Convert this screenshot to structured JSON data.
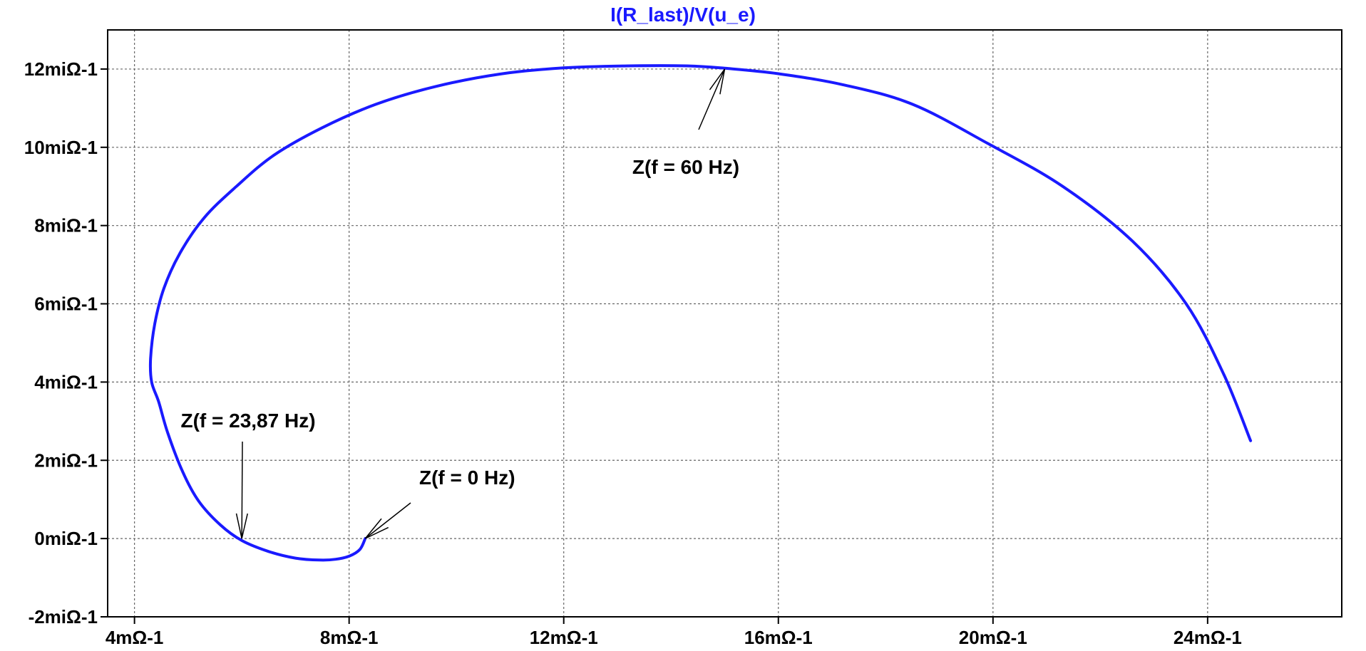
{
  "chart_data": {
    "type": "line",
    "title": "I(R_last)/V(u_e)",
    "xlabel": "",
    "ylabel": "",
    "xlim": [
      3.5,
      26.5
    ],
    "ylim": [
      -2.0,
      13.0
    ],
    "grid": true,
    "x_ticks": [
      4,
      8,
      12,
      16,
      20,
      24
    ],
    "x_tick_labels": [
      "4mΩ-1",
      "8mΩ-1",
      "12mΩ-1",
      "16mΩ-1",
      "20mΩ-1",
      "24mΩ-1"
    ],
    "y_ticks": [
      -2,
      0,
      2,
      4,
      6,
      8,
      10,
      12
    ],
    "y_tick_labels": [
      "-2miΩ-1",
      "0miΩ-1",
      "2miΩ-1",
      "4miΩ-1",
      "6miΩ-1",
      "8miΩ-1",
      "10miΩ-1",
      "12miΩ-1"
    ],
    "series_color": "#1a1aff",
    "series": [
      {
        "name": "",
        "x": [
          8.3,
          8.2,
          8.0,
          7.75,
          7.45,
          7.0,
          6.5,
          6.0,
          5.6,
          5.2,
          4.9,
          4.62,
          4.45,
          4.32,
          4.3,
          4.38,
          4.55,
          4.85,
          5.3,
          5.9,
          6.6,
          7.5,
          8.5,
          9.6,
          10.8,
          12.0,
          13.2,
          14.3,
          15.0,
          16.0,
          17.2,
          18.5,
          19.9,
          21.3,
          22.6,
          23.6,
          24.3,
          24.8
        ],
        "y": [
          0.0,
          -0.28,
          -0.45,
          -0.53,
          -0.55,
          -0.5,
          -0.33,
          -0.05,
          0.35,
          0.95,
          1.7,
          2.7,
          3.5,
          4.0,
          4.6,
          5.5,
          6.4,
          7.3,
          8.2,
          9.0,
          9.8,
          10.5,
          11.1,
          11.55,
          11.87,
          12.03,
          12.08,
          12.08,
          12.02,
          11.88,
          11.6,
          11.1,
          10.1,
          9.0,
          7.6,
          6.0,
          4.2,
          2.5
        ]
      }
    ],
    "annotations": [
      {
        "text": "Z(f = 60 Hz)",
        "x": 15.0,
        "y": 12.0
      },
      {
        "text": "Z(f = 23,87 Hz)",
        "x": 6.0,
        "y": 0.0
      },
      {
        "text": "Z(f = 0 Hz)",
        "x": 8.3,
        "y": 0.0
      }
    ]
  }
}
